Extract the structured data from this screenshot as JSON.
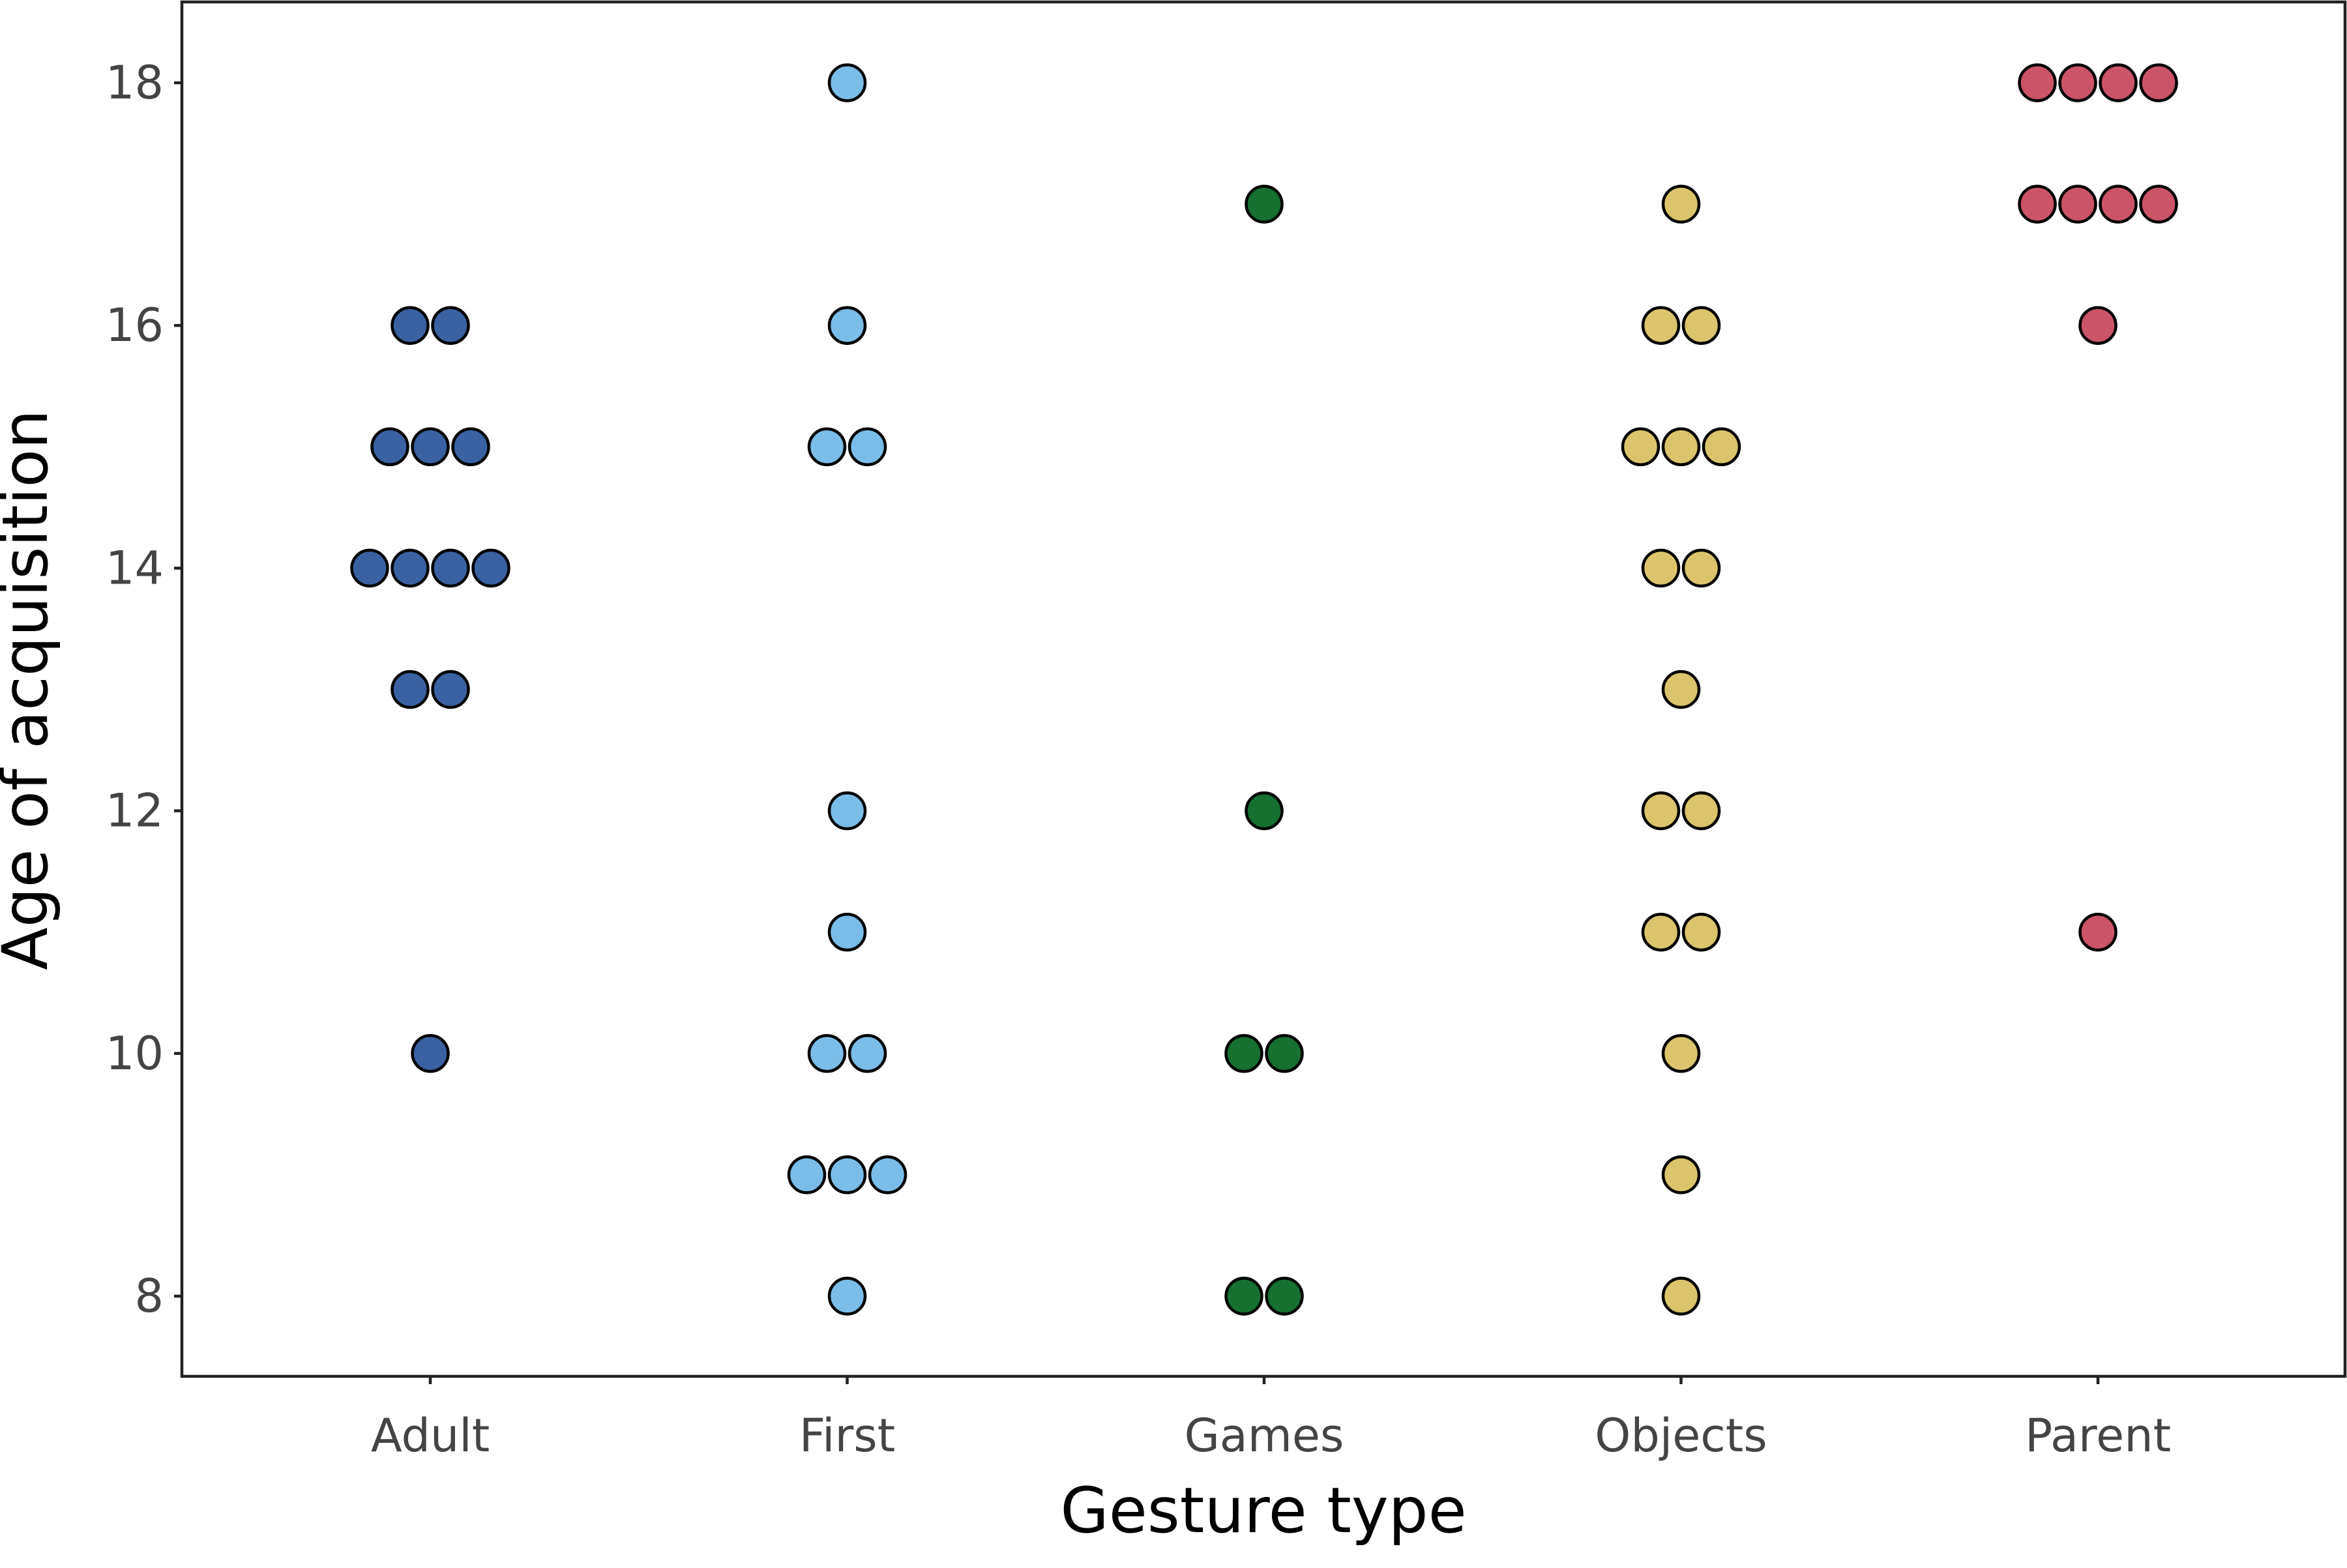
{
  "chart_data": {
    "type": "scatter",
    "xlabel": "Gesture type",
    "ylabel": "Age of acquisition",
    "categories": [
      "Adult",
      "First",
      "Games",
      "Objects",
      "Parent"
    ],
    "ylim": [
      7.3,
      18.65
    ],
    "yticks": [
      8,
      10,
      12,
      14,
      16,
      18
    ],
    "grid": false,
    "legend": "none",
    "series": [
      {
        "category": "Adult",
        "color": "#3a62a3",
        "points": [
          {
            "y": 16,
            "count": 2
          },
          {
            "y": 15,
            "count": 3
          },
          {
            "y": 14,
            "count": 4
          },
          {
            "y": 13,
            "count": 2
          },
          {
            "y": 10,
            "count": 1
          }
        ]
      },
      {
        "category": "First",
        "color": "#7bbde9",
        "points": [
          {
            "y": 18,
            "count": 1
          },
          {
            "y": 16,
            "count": 1
          },
          {
            "y": 15,
            "count": 2
          },
          {
            "y": 12,
            "count": 1
          },
          {
            "y": 11,
            "count": 1
          },
          {
            "y": 10,
            "count": 2
          },
          {
            "y": 9,
            "count": 3
          },
          {
            "y": 8,
            "count": 1
          }
        ]
      },
      {
        "category": "Games",
        "color": "#167030",
        "points": [
          {
            "y": 17,
            "count": 1
          },
          {
            "y": 12,
            "count": 1
          },
          {
            "y": 10,
            "count": 2
          },
          {
            "y": 8,
            "count": 2
          }
        ]
      },
      {
        "category": "Objects",
        "color": "#dcc46c",
        "points": [
          {
            "y": 17,
            "count": 1
          },
          {
            "y": 16,
            "count": 2
          },
          {
            "y": 15,
            "count": 3
          },
          {
            "y": 14,
            "count": 2
          },
          {
            "y": 13,
            "count": 1
          },
          {
            "y": 12,
            "count": 2
          },
          {
            "y": 11,
            "count": 2
          },
          {
            "y": 10,
            "count": 1
          },
          {
            "y": 9,
            "count": 1
          },
          {
            "y": 8,
            "count": 1
          }
        ]
      },
      {
        "category": "Parent",
        "color": "#cc5468",
        "points": [
          {
            "y": 18,
            "count": 4
          },
          {
            "y": 17,
            "count": 4
          },
          {
            "y": 16,
            "count": 1
          },
          {
            "y": 11,
            "count": 1
          }
        ]
      }
    ]
  }
}
